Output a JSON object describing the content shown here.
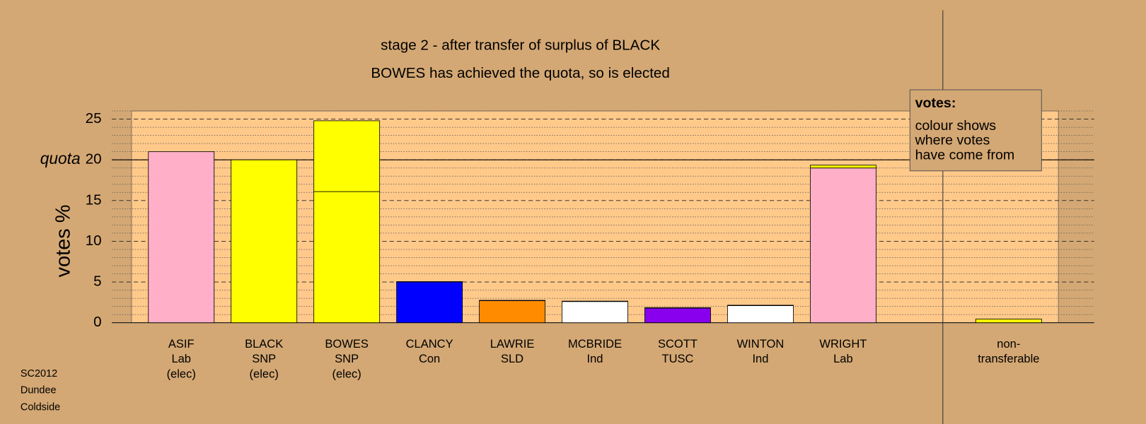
{
  "chart_data": {
    "type": "bar",
    "title": "stage 2 - after transfer of surplus of BLACK",
    "subtitle": "BOWES has achieved the quota, so is elected",
    "y_label": "votes %",
    "quota": 20,
    "quota_label": "quota",
    "categories": [
      [
        "ASIF",
        "Lab",
        "(elec)"
      ],
      [
        "BLACK",
        "SNP",
        "(elec)"
      ],
      [
        "BOWES",
        "SNP",
        "(elec)"
      ],
      [
        "CLANCY",
        "Con"
      ],
      [
        "LAWRIE",
        "SLD"
      ],
      [
        "MCBRIDE",
        "Ind"
      ],
      [
        "SCOTT",
        "TUSC"
      ],
      [
        "WINTON",
        "Ind"
      ],
      [
        "WRIGHT",
        "Lab"
      ],
      null,
      [
        "non-",
        "transferable"
      ]
    ],
    "series": [
      {
        "colors": [
          "#ffb0c8",
          "#ffff00",
          "#ffff00",
          "#0000ff",
          "#ff8c00",
          "#ffffff",
          "#8800ee",
          "#ffffff",
          "#ffb0c8",
          null,
          "#ffff00"
        ],
        "values": [
          21.0,
          20.0,
          16.1,
          5.0,
          2.7,
          2.6,
          1.8,
          2.1,
          19.0,
          null,
          0.45
        ]
      },
      {
        "color": "#ffff00",
        "values": [
          0,
          0,
          8.7,
          0.05,
          0.05,
          0.05,
          0.05,
          0.05,
          0.35,
          null,
          0
        ]
      }
    ],
    "ylim": [
      0,
      26
    ],
    "yticks": [
      0,
      5,
      10,
      15,
      20,
      25
    ],
    "minor_yticks": [
      1,
      2,
      3,
      4,
      6,
      7,
      8,
      9,
      11,
      12,
      13,
      14,
      16,
      17,
      18,
      19,
      21,
      22,
      23,
      24,
      26
    ],
    "legend": {
      "title": "votes:",
      "lines": [
        "colour shows",
        "where votes",
        "have come from"
      ]
    },
    "footer": [
      "SC2012",
      "Dundee",
      "Coldside"
    ]
  }
}
